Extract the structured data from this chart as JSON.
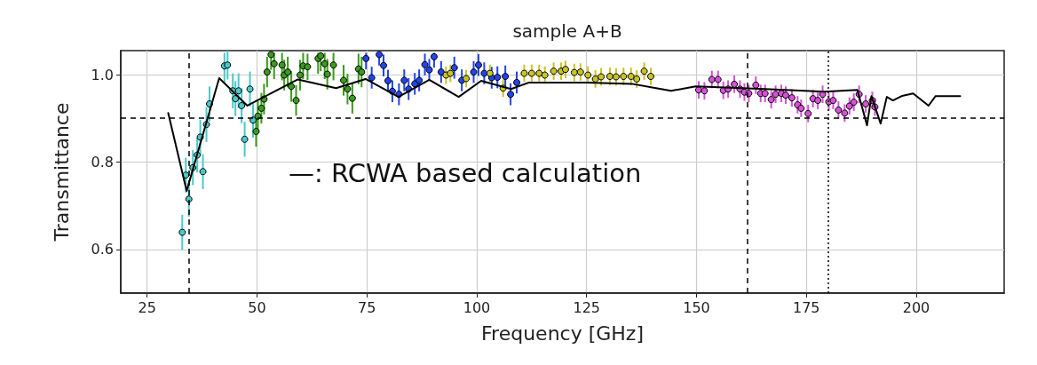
{
  "chart_data": {
    "type": "scatter",
    "title": "sample A+B",
    "xlabel": "Frequency [GHz]",
    "ylabel": "Transmittance",
    "annotations": [
      "—: RCWA based calculation"
    ],
    "xlim": [
      19,
      220
    ],
    "xticks": [
      25,
      50,
      75,
      100,
      125,
      150,
      175,
      200
    ],
    "ylim": [
      0.5,
      1.055
    ],
    "yticks": [
      {
        "value": 0.6,
        "label": "0.6"
      },
      {
        "value": 0.8,
        "label": "0.8"
      },
      {
        "value": 1.0,
        "label": "1.0"
      }
    ],
    "grid": true,
    "marker": "circle",
    "ref_lines": [
      {
        "axis": "x",
        "value": 34.5,
        "color": "#000000",
        "line_style": "dashed"
      },
      {
        "axis": "x",
        "value": 161.5,
        "color": "#000000",
        "line_style": "dashed"
      },
      {
        "axis": "x",
        "value": 180,
        "color": "#000000",
        "line_style": "dotted"
      },
      {
        "axis": "y",
        "value": 0.9,
        "color": "#000000",
        "line_style": "dashed"
      }
    ],
    "series": [
      {
        "color": "#4cc8c8",
        "x": [
          33,
          33.8,
          34.5,
          35.4,
          36.4,
          37.1,
          37.7,
          38.5,
          39.2,
          42.6,
          43.3,
          44.5,
          45.1,
          45.8,
          46.5,
          47.2,
          48.4,
          49.1
        ],
        "values": [
          0.639,
          0.77,
          0.715,
          0.787,
          0.816,
          0.857,
          0.778,
          0.886,
          0.933,
          1.02,
          1.022,
          0.963,
          0.945,
          0.963,
          0.929,
          0.852,
          0.967,
          0.896
        ],
        "errors": [
          0.04,
          0.04,
          0.04,
          0.04,
          0.04,
          0.04,
          0.04,
          0.04,
          0.04,
          [
            0.98,
            1.05
          ],
          0.033,
          0.04,
          0.04,
          0.04,
          0.04,
          0.04,
          0.04,
          0.04
        ]
      },
      {
        "color": "#3c9a1e",
        "x": [
          49.8,
          50.2,
          51,
          51.6,
          52.3,
          53.2,
          53.9,
          55.7,
          56.2,
          57,
          57.8,
          58.9,
          59.8,
          60.5,
          61.5,
          63.9,
          64.5,
          65.4,
          66,
          67.4,
          69.7,
          70.6,
          71.7,
          73.1,
          73.8
        ],
        "values": [
          0.87,
          0.905,
          0.923,
          0.944,
          1.006,
          1.046,
          1.025,
          1.022,
          0.999,
          1.006,
          0.973,
          0.941,
          0.999,
          1.02,
          1.018,
          1.037,
          1.043,
          1.025,
          1.001,
          1.022,
          0.987,
          0.967,
          0.946,
          1.013,
          1.006
        ],
        "errors": [
          0.035,
          0.035,
          0.035,
          0.035,
          0.035,
          [
            1.011,
            1.05
          ],
          [
            0.99,
            1.05
          ],
          [
            0.987,
            1.05
          ],
          0.035,
          0.035,
          0.035,
          0.035,
          0.035,
          0.03,
          0.03,
          [
            1.002,
            1.05
          ],
          [
            1.008,
            1.05
          ],
          [
            0.99,
            1.05
          ],
          0.035,
          [
            0.987,
            1.05
          ],
          0.035,
          0.035,
          0.035,
          0.035,
          0.035
        ]
      },
      {
        "color": "#2244ee",
        "x": [
          74.8,
          76.1,
          77.8,
          78.8,
          79.8,
          80.8,
          82.3,
          83.5,
          84.5,
          85.9,
          86.9,
          88.2,
          89.2,
          90.3,
          91.9,
          94.9,
          96.6,
          99.3,
          100.4,
          101.7,
          103.4,
          104.7,
          106.5,
          107.7,
          109.1
        ],
        "values": [
          1.037,
          0.993,
          1.046,
          1.021,
          0.986,
          0.962,
          0.955,
          0.987,
          0.967,
          0.979,
          0.987,
          1.023,
          1.011,
          1.041,
          1.006,
          1.016,
          0.987,
          1.006,
          1.022,
          1.003,
          0.993,
          0.994,
          0.996,
          0.955,
          0.982
        ],
        "errors": [
          [
            1.012,
            1.05
          ],
          0.025,
          [
            1.021,
            1.05
          ],
          0.025,
          0.025,
          0.025,
          0.025,
          0.025,
          0.025,
          0.025,
          0.025,
          0.025,
          0.025,
          [
            1.016,
            1.05
          ],
          0.025,
          0.025,
          0.025,
          0.025,
          0.025,
          0.025,
          0.025,
          0.025,
          0.025,
          0.025,
          0.025
        ]
      },
      {
        "color": "#c8c424",
        "x": [
          93,
          94,
          97.6,
          103,
          106,
          110.8,
          112.5,
          114.2,
          115.5,
          117.5,
          119.2,
          120.2,
          122.2,
          123.6,
          125.3,
          127,
          128.3,
          130.3,
          131.7,
          133.4,
          135.1,
          136.4,
          138.1,
          139.6
        ],
        "values": [
          0.999,
          1.003,
          0.991,
          1.003,
          0.969,
          1.003,
          1.003,
          1.003,
          0.999,
          1.008,
          1.008,
          1.012,
          1.005,
          1.006,
          0.999,
          0.99,
          0.995,
          0.996,
          0.995,
          0.996,
          0.996,
          0.99,
          1.008,
          0.996
        ],
        "errors": [
          0.02,
          0.02,
          0.02,
          0.02,
          0.02,
          0.02,
          0.02,
          0.02,
          0.02,
          0.02,
          0.02,
          0.02,
          0.02,
          0.02,
          0.02,
          0.02,
          0.02,
          0.02,
          0.02,
          0.02,
          0.02,
          0.02,
          0.02,
          0.02
        ]
      },
      {
        "color": "#d452d4",
        "x": [
          150.5,
          151.8,
          153.5,
          154.9,
          156.1,
          157.2,
          158.6,
          159.9,
          160.9,
          161.9,
          163.5,
          164.6,
          165.6,
          167,
          168,
          169.3,
          170.3,
          171.7,
          173,
          173.8,
          175.4,
          176.5,
          177.6,
          178.7,
          180.1,
          181.1,
          182.3,
          183.7,
          184.8,
          185.8,
          187,
          188.5,
          190,
          190.6
        ],
        "values": [
          0.965,
          0.963,
          0.989,
          0.989,
          0.964,
          0.967,
          0.978,
          0.967,
          0.96,
          0.957,
          0.976,
          0.957,
          0.957,
          0.943,
          0.955,
          0.957,
          0.953,
          0.947,
          0.931,
          0.923,
          0.911,
          0.945,
          0.941,
          0.955,
          0.938,
          0.941,
          0.919,
          0.912,
          0.928,
          0.937,
          0.955,
          0.933,
          0.941,
          0.926
        ],
        "errors": [
          0.02,
          0.02,
          0.02,
          0.02,
          0.02,
          0.02,
          0.02,
          0.02,
          0.02,
          0.02,
          0.02,
          0.02,
          0.02,
          0.02,
          0.02,
          0.02,
          0.02,
          0.02,
          0.02,
          0.02,
          0.02,
          0.02,
          0.02,
          0.02,
          0.02,
          0.02,
          0.02,
          0.02,
          0.02,
          0.02,
          0.02,
          0.02,
          0.02,
          0.02
        ]
      },
      {
        "type": "line",
        "color": "#000000",
        "marker": "none",
        "x": [
          29.8,
          34,
          41.4,
          47.8,
          59.3,
          68,
          74.7,
          82.2,
          89.2,
          95.9,
          101,
          107.8,
          111.9,
          125.2,
          135.3,
          140.8,
          144.2,
          149.8,
          165.6,
          179.1,
          186.6,
          188.8,
          189.8,
          191.9,
          193.3,
          194.7,
          196.7,
          199.3,
          202.8,
          204.4,
          210
        ],
        "values": [
          0.912,
          0.734,
          0.992,
          0.929,
          0.989,
          0.969,
          0.99,
          0.949,
          0.988,
          0.949,
          0.986,
          0.967,
          0.982,
          0.982,
          0.979,
          0.969,
          0.963,
          0.973,
          0.967,
          0.961,
          0.965,
          0.884,
          0.951,
          0.888,
          0.949,
          0.941,
          0.951,
          0.957,
          0.929,
          0.951,
          0.951
        ]
      }
    ]
  }
}
